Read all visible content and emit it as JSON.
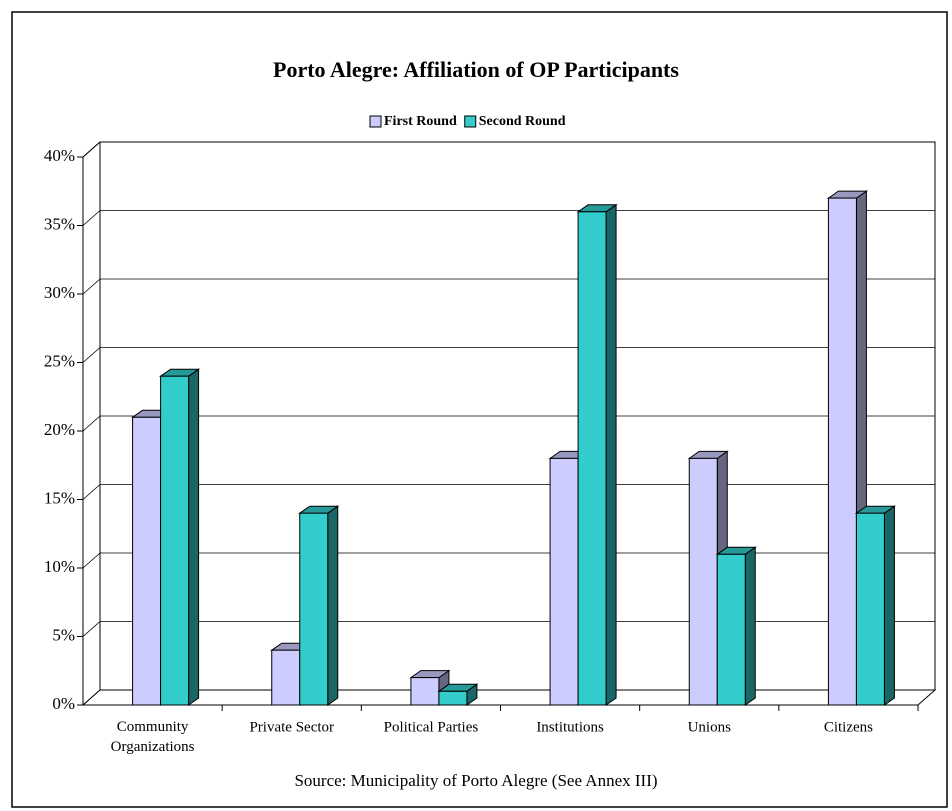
{
  "chart_data": {
    "type": "bar3d",
    "title": "Porto Alegre: Affiliation of OP Participants",
    "categories": [
      "Community Organizations",
      "Private Sector",
      "Political Parties",
      "Institutions",
      "Unions",
      "Citizens"
    ],
    "series": [
      {
        "name": "First Round",
        "color": "#ccccff",
        "values": [
          21,
          4,
          2,
          18,
          18,
          37
        ]
      },
      {
        "name": "Second Round",
        "color": "#33cccc",
        "values": [
          24,
          14,
          1,
          36,
          11,
          14
        ]
      }
    ],
    "ylim": [
      0,
      40
    ],
    "yticks": [
      {
        "value": 0,
        "label": "0%"
      },
      {
        "value": 5,
        "label": "5%"
      },
      {
        "value": 10,
        "label": "10%"
      },
      {
        "value": 15,
        "label": "15%"
      },
      {
        "value": 20,
        "label": "20%"
      },
      {
        "value": 25,
        "label": "25%"
      },
      {
        "value": 30,
        "label": "30%"
      },
      {
        "value": 35,
        "label": "35%"
      },
      {
        "value": 40,
        "label": "40%"
      }
    ],
    "grid": true,
    "legend": "top",
    "source": "Source: Municipality of Porto Alegre (See Annex III)"
  }
}
